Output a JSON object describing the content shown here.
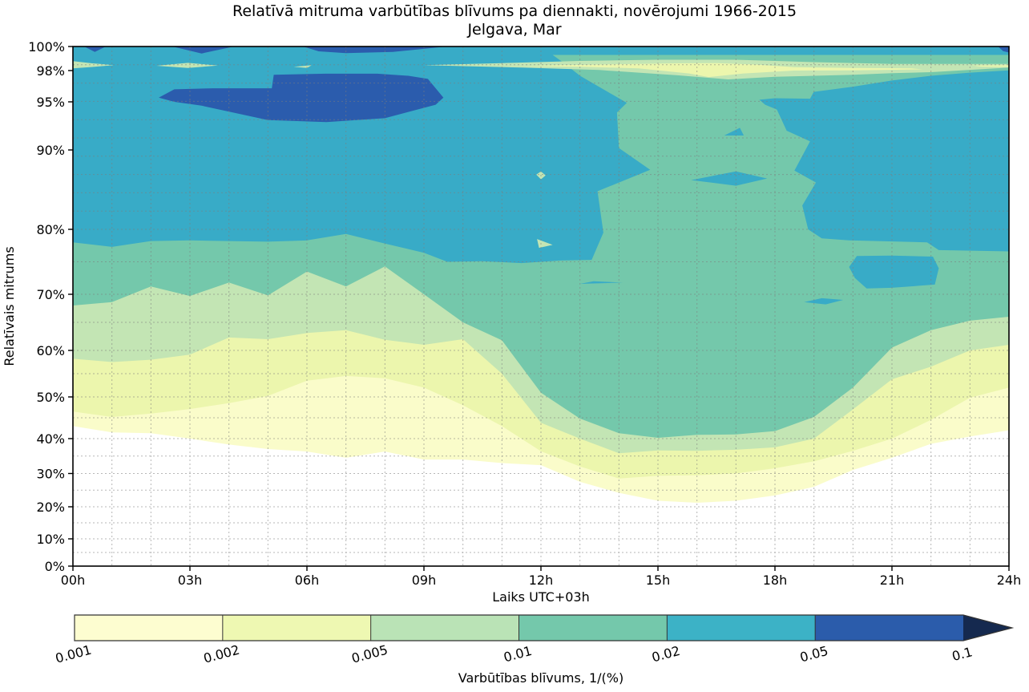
{
  "page": {
    "title": "Relatīvā mitruma varbūtības blīvums pa diennakti, novērojumi 1966-2015",
    "subtitle": "Jelgava, Mar"
  },
  "chart_data": {
    "type": "filled_contour",
    "title": "Relatīvā mitruma varbūtības blīvums pa diennakti, novērojumi 1966-2015",
    "subtitle": "Jelgava, Mar",
    "xlabel": "Laiks UTC+03h",
    "ylabel": "Relatīvais mitrums",
    "x_ticks": [
      "00h",
      "03h",
      "06h",
      "09h",
      "12h",
      "15h",
      "18h",
      "21h",
      "24h"
    ],
    "x_tick_hours": [
      0,
      3,
      6,
      9,
      12,
      15,
      18,
      21,
      24
    ],
    "y_ticks": [
      "0%",
      "10%",
      "20%",
      "30%",
      "40%",
      "50%",
      "60%",
      "70%",
      "80%",
      "90%",
      "95%",
      "98%",
      "100%"
    ],
    "y_tick_values": [
      0,
      10,
      20,
      30,
      40,
      50,
      60,
      70,
      80,
      90,
      95,
      98,
      100
    ],
    "xlim_hours": [
      0,
      24
    ],
    "ylim_percent": [
      0,
      100
    ],
    "y_axis_note": "nonlinear axis, stretched toward 100%",
    "grid": {
      "vertical_every_hours": 1,
      "horizontal_minor_step_below_80": 5,
      "style": "dotted"
    },
    "levels": [
      0.001,
      0.002,
      0.005,
      0.01,
      0.02,
      0.05,
      0.1
    ],
    "band_colors": {
      "b0_001_0_002": "#fafcca",
      "b0_002_0_005": "#ecf6ad",
      "b0_005_0_01": "#c3e5b4",
      "b0_01_0_02": "#74c8ab",
      "b0_02_0_05": "#38abc7",
      "b0_05_0_1": "#2b5cad",
      "above_0_1": "#15294f",
      "below_0_001": "#ffffff"
    },
    "colorbar": {
      "tick_labels": [
        "0.001",
        "0.002",
        "0.005",
        "0.01",
        "0.02",
        "0.05",
        "0.1"
      ],
      "segment_colors": [
        "#fdfdd0",
        "#eef8b2",
        "#bae3b6",
        "#74c8ab",
        "#3cb2c6",
        "#2b5cab"
      ],
      "arrow_color": "#15294f",
      "label": "Varbūtības blīvums, 1/(%)",
      "tick_rotation_deg": -15
    },
    "density_boundaries": {
      "comment": "lower crossing (humidity %) of each density contour level vs hour of day",
      "hours": [
        0,
        1,
        2,
        3,
        4,
        5,
        6,
        7,
        8,
        9,
        10,
        11,
        12,
        13,
        14,
        15,
        16,
        17,
        18,
        19,
        20,
        21,
        22,
        23,
        24
      ],
      "contour_0_001": [
        43,
        41.5,
        41.3,
        40,
        38.3,
        37,
        36.3,
        34.5,
        36.3,
        34,
        34,
        33,
        32.4,
        27.5,
        24.2,
        21.8,
        21.2,
        21.8,
        23.4,
        26,
        31,
        34.5,
        38.5,
        40.5,
        42
      ],
      "contour_0_002": [
        46.5,
        45.2,
        46,
        47.1,
        48.5,
        50.2,
        53.5,
        54.5,
        54,
        52,
        48,
        43,
        36.4,
        32,
        28.5,
        29.3,
        29.5,
        30,
        31.5,
        33.5,
        36.5,
        40,
        44.5,
        49.8,
        52
      ],
      "contour_0_005": [
        58.2,
        57.5,
        58,
        59.1,
        62.3,
        62,
        63.1,
        63.6,
        61.9,
        61,
        62,
        55,
        43.8,
        40,
        35.8,
        36.6,
        36.5,
        36.8,
        37.5,
        40,
        47,
        53.8,
        56.5,
        60,
        61
      ],
      "contour_0_01": [
        68,
        68.6,
        71.2,
        69.7,
        71.8,
        69.8,
        73.5,
        71.2,
        74.3,
        70,
        65,
        61.8,
        50.9,
        44.8,
        41.3,
        40.2,
        40.9,
        41,
        41.8,
        45.2,
        52,
        60.5,
        63.6,
        65.3,
        66
      ]
    },
    "features": [
      {
        "name": "cyan-top-strip",
        "band": "0.02-0.05",
        "color_key": "b0_02_0_05",
        "points": [
          [
            0,
            100
          ],
          [
            24,
            100
          ],
          [
            24,
            99.3
          ],
          [
            0,
            99.3
          ]
        ]
      },
      {
        "name": "cyan-region-morning",
        "band": "0.02-0.05",
        "color_key": "b0_02_0_05",
        "points": [
          [
            0,
            99.3
          ],
          [
            13,
            99.3
          ],
          [
            13.6,
            98
          ],
          [
            14.1,
            96.3
          ],
          [
            14.5,
            95.8
          ],
          [
            14.2,
            94.9
          ],
          [
            13.95,
            93.9
          ],
          [
            14.0,
            90.2
          ],
          [
            14.8,
            87.5
          ],
          [
            13.45,
            84.8
          ],
          [
            13.6,
            79.5
          ],
          [
            13.3,
            75.3
          ],
          [
            12.5,
            75.2
          ],
          [
            11.5,
            74.8
          ],
          [
            10.5,
            75.1
          ],
          [
            9.6,
            75.0
          ],
          [
            9.0,
            76.4
          ],
          [
            8.0,
            77.8
          ],
          [
            7.0,
            79.3
          ],
          [
            6.0,
            78.3
          ],
          [
            5.0,
            78.1
          ],
          [
            4.0,
            78.2
          ],
          [
            3.0,
            78.3
          ],
          [
            2.0,
            78.2
          ],
          [
            1.0,
            77.3
          ],
          [
            0,
            78.0
          ]
        ]
      },
      {
        "name": "cyan-region-evening",
        "band": "0.02-0.05",
        "color_key": "b0_02_0_05",
        "points": [
          [
            19.0,
            99.3
          ],
          [
            24,
            99.3
          ],
          [
            24,
            76.6
          ],
          [
            22.2,
            76.8
          ],
          [
            21.9,
            78.0
          ],
          [
            19.9,
            78.3
          ],
          [
            19.2,
            78.6
          ],
          [
            18.85,
            80.0
          ],
          [
            18.7,
            83.0
          ],
          [
            19.05,
            85.9
          ],
          [
            18.5,
            87.4
          ],
          [
            18.9,
            90.9
          ],
          [
            18.3,
            92.0
          ],
          [
            18.05,
            94.2
          ],
          [
            17.75,
            94.7
          ],
          [
            17.6,
            95.2
          ],
          [
            18.0,
            95.35
          ],
          [
            18.9,
            95.3
          ],
          [
            19.0,
            96.0
          ]
        ]
      },
      {
        "name": "cyan-patch-evening-73pct",
        "band": "0.02-0.05",
        "color_key": "b0_02_0_05",
        "points": [
          [
            19.9,
            74.2
          ],
          [
            20.1,
            75.9
          ],
          [
            21.0,
            75.95
          ],
          [
            22.05,
            75.8
          ],
          [
            22.2,
            74.0
          ],
          [
            22.1,
            71.5
          ],
          [
            21.0,
            71.0
          ],
          [
            20.35,
            70.9
          ],
          [
            20.05,
            72.5
          ]
        ]
      },
      {
        "name": "cyan-sliver-69pct",
        "band": "0.02-0.05",
        "color_key": "b0_02_0_05",
        "points": [
          [
            18.75,
            68.6
          ],
          [
            19.2,
            69.3
          ],
          [
            19.75,
            69.0
          ],
          [
            19.3,
            68.2
          ]
        ]
      },
      {
        "name": "cyan-dash-72pct",
        "band": "0.02-0.05",
        "color_key": "b0_02_0_05",
        "points": [
          [
            13.0,
            71.6
          ],
          [
            14.1,
            71.8
          ],
          [
            13.35,
            72.0
          ]
        ]
      },
      {
        "name": "cyan-diamond-86pct",
        "band": "0.02-0.05",
        "color_key": "b0_02_0_05",
        "points": [
          [
            15.85,
            86.2
          ],
          [
            17.0,
            87.3
          ],
          [
            17.8,
            86.4
          ],
          [
            17.0,
            85.5
          ]
        ]
      },
      {
        "name": "cyan-triangle-92pct",
        "band": "0.02-0.05",
        "color_key": "b0_02_0_05",
        "points": [
          [
            16.7,
            91.5
          ],
          [
            17.1,
            92.3
          ],
          [
            17.2,
            91.5
          ]
        ]
      },
      {
        "name": "royal-blob-morning-95pct",
        "band": "0.05-0.1",
        "color_key": "b0_05_0_1",
        "points": [
          [
            2.2,
            95.4
          ],
          [
            2.6,
            96.2
          ],
          [
            3.6,
            96.3
          ],
          [
            5.1,
            96.3
          ],
          [
            5.15,
            97.6
          ],
          [
            6.5,
            97.7
          ],
          [
            7.8,
            97.7
          ],
          [
            8.6,
            97.5
          ],
          [
            9.1,
            97.2
          ],
          [
            9.5,
            95.4
          ],
          [
            9.3,
            94.7
          ],
          [
            8.0,
            93.3
          ],
          [
            6.5,
            92.9
          ],
          [
            5.0,
            93.1
          ],
          [
            4.1,
            93.9
          ],
          [
            3.3,
            94.6
          ],
          [
            2.6,
            95.0
          ]
        ]
      },
      {
        "name": "teal-band-top-right",
        "band": "0.01-0.02",
        "color_key": "b0_01_0_02",
        "points": [
          [
            12.3,
            99.3
          ],
          [
            24,
            99.3
          ],
          [
            24,
            98.02
          ],
          [
            23,
            97.8
          ],
          [
            22,
            97.5
          ],
          [
            21,
            97.05
          ],
          [
            20,
            96.45
          ],
          [
            19,
            95.95
          ],
          [
            18,
            95.85
          ],
          [
            17.2,
            96.0
          ],
          [
            16.4,
            96.9
          ],
          [
            15.5,
            96.2
          ],
          [
            14.7,
            95.25
          ],
          [
            14.2,
            94.9
          ],
          [
            13.6,
            96.2
          ],
          [
            13.0,
            97.5
          ],
          [
            12.6,
            98.6
          ]
        ]
      },
      {
        "name": "lightgreen-streak-98pct",
        "band": "0.005-0.01",
        "color_key": "b0_005_0_01",
        "points": [
          [
            9.0,
            98.45
          ],
          [
            11,
            98.62
          ],
          [
            13,
            98.8
          ],
          [
            15,
            98.9
          ],
          [
            17,
            98.9
          ],
          [
            19,
            98.7
          ],
          [
            21,
            98.55
          ],
          [
            23,
            98.55
          ],
          [
            24,
            98.55
          ],
          [
            24,
            98.25
          ],
          [
            22,
            97.85
          ],
          [
            21,
            97.75
          ],
          [
            20,
            97.6
          ],
          [
            18,
            97.4
          ],
          [
            16.8,
            97.15
          ],
          [
            15.5,
            97.55
          ],
          [
            13.5,
            98.05
          ],
          [
            11.5,
            98.25
          ]
        ]
      },
      {
        "name": "paleyellow-core-98pct",
        "band": "0.002-0.005",
        "color_key": "b0_002_0_005",
        "points": [
          [
            11.5,
            98.38
          ],
          [
            13.5,
            98.5
          ],
          [
            15.5,
            98.6
          ],
          [
            16.5,
            98.62
          ],
          [
            17.5,
            98.5
          ],
          [
            18.5,
            98.28
          ],
          [
            20,
            98.22
          ],
          [
            21.5,
            98.18
          ],
          [
            21.8,
            98.1
          ],
          [
            20,
            98.02
          ],
          [
            18.5,
            98.0
          ],
          [
            17.2,
            97.72
          ],
          [
            16.3,
            97.38
          ],
          [
            15.8,
            97.72
          ],
          [
            14.5,
            98.18
          ],
          [
            13,
            98.32
          ]
        ]
      },
      {
        "name": "paleyellow-dash-right",
        "band": "0.002-0.005",
        "color_key": "b0_002_0_005",
        "points": [
          [
            23.05,
            98.42
          ],
          [
            24,
            98.45
          ],
          [
            24,
            98.3
          ],
          [
            23.3,
            98.33
          ]
        ]
      },
      {
        "name": "lightgreen-wedge-00h",
        "band": "0.005-0.01",
        "color_key": "b0_005_0_01",
        "points": [
          [
            0,
            98.78
          ],
          [
            0.5,
            98.6
          ],
          [
            1.05,
            98.45
          ],
          [
            0.5,
            98.3
          ],
          [
            0,
            98.18
          ]
        ]
      },
      {
        "name": "lightgreen-wedge-03h",
        "band": "0.005-0.01",
        "color_key": "b0_005_0_01",
        "points": [
          [
            2.14,
            98.4
          ],
          [
            2.95,
            98.64
          ],
          [
            3.72,
            98.42
          ],
          [
            2.95,
            98.22
          ]
        ]
      },
      {
        "name": "lightgreen-wedge-06h",
        "band": "0.005-0.01",
        "color_key": "b0_005_0_01",
        "points": [
          [
            5.66,
            98.32
          ],
          [
            6.12,
            98.44
          ],
          [
            6.0,
            98.22
          ]
        ]
      },
      {
        "name": "lightgreen-diamond-87pct",
        "band": "0.005-0.01",
        "color_key": "b0_005_0_01",
        "points": [
          [
            11.88,
            86.9
          ],
          [
            12.0,
            87.3
          ],
          [
            12.12,
            86.8
          ],
          [
            12.0,
            86.3
          ]
        ]
      },
      {
        "name": "lightgreen-notch-78pct",
        "band": "0.005-0.01",
        "color_key": "b0_005_0_01",
        "points": [
          [
            11.9,
            78.5
          ],
          [
            12.3,
            77.6
          ],
          [
            11.95,
            77.15
          ]
        ]
      },
      {
        "name": "navy-sliver-top-00h",
        "band": ">=0.05",
        "color_key": "b0_05_0_1",
        "points": [
          [
            0.29,
            100
          ],
          [
            0.84,
            100
          ],
          [
            0.56,
            99.55
          ]
        ]
      },
      {
        "name": "navy-sliver-top-03h",
        "band": ">=0.05",
        "color_key": "b0_05_0_1",
        "points": [
          [
            2.55,
            100
          ],
          [
            4.13,
            100
          ],
          [
            3.3,
            99.42
          ]
        ]
      },
      {
        "name": "navy-sliver-top-07h",
        "band": ">=0.05",
        "color_key": "b0_05_0_1",
        "points": [
          [
            5.9,
            100
          ],
          [
            9.58,
            100
          ],
          [
            8.2,
            99.55
          ],
          [
            7.0,
            99.45
          ],
          [
            6.3,
            99.6
          ]
        ]
      },
      {
        "name": "navy-sliver-top-24h",
        "band": ">=0.05",
        "color_key": "b0_05_0_1",
        "points": [
          [
            23.72,
            100
          ],
          [
            24,
            100
          ],
          [
            24,
            99.5
          ],
          [
            23.85,
            99.62
          ]
        ]
      }
    ]
  }
}
